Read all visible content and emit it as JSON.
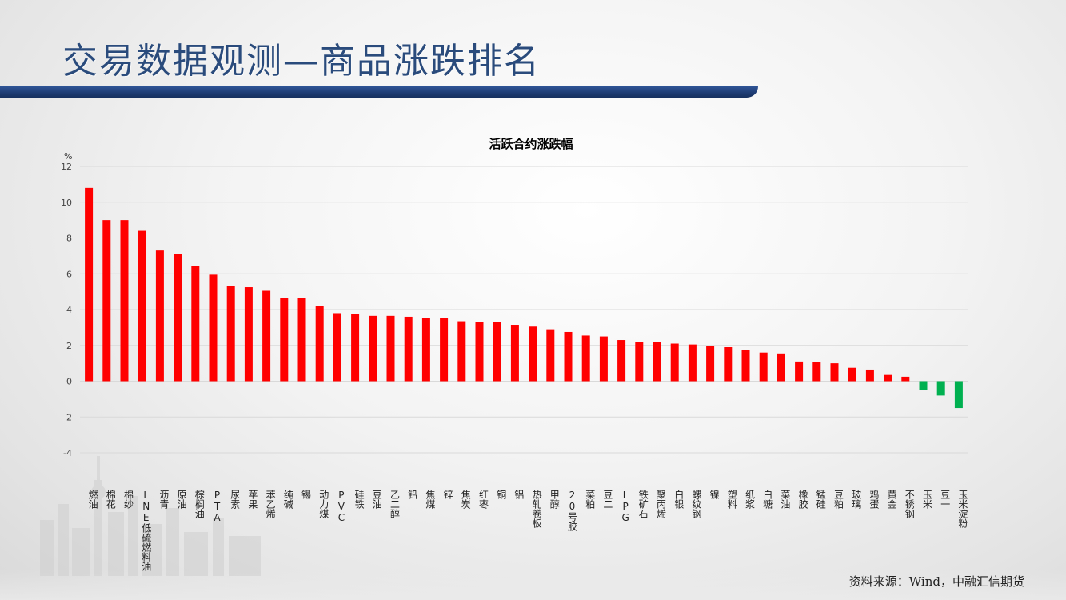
{
  "header": {
    "title": "交易数据观测—商品涨跌排名"
  },
  "source": "资料来源：Wind，中融汇信期货",
  "colors": {
    "title": "#2a4b7c",
    "title_bar": "#1d3b72",
    "positive": "#ff0000",
    "negative": "#00b050",
    "grid": "#d9d9d9"
  },
  "chart_data": {
    "type": "bar",
    "title": "活跃合约涨跌幅",
    "ylabel": "%",
    "ylim": [
      -4,
      12
    ],
    "yticks": [
      -4,
      -2,
      0,
      2,
      4,
      6,
      8,
      10,
      12
    ],
    "grid": true,
    "categories": [
      "燃油",
      "棉花",
      "棉纱",
      "LNE低硫燃料油",
      "沥青",
      "原油",
      "棕榈油",
      "PTA",
      "尿素",
      "苹果",
      "苯乙烯",
      "纯碱",
      "锡",
      "动力煤",
      "PVC",
      "硅铁",
      "豆油",
      "乙二醇",
      "铅",
      "焦煤",
      "锌",
      "焦炭",
      "红枣",
      "铜",
      "铝",
      "热轧卷板",
      "甲醇",
      "20号胶",
      "菜粕",
      "豆二",
      "LPG",
      "铁矿石",
      "聚丙烯",
      "白银",
      "螺纹钢",
      "镍",
      "塑料",
      "纸浆",
      "白糖",
      "菜油",
      "橡胶",
      "锰硅",
      "豆粕",
      "玻璃",
      "鸡蛋",
      "黄金",
      "不锈钢",
      "玉米",
      "豆一",
      "玉米淀粉"
    ],
    "values": [
      10.8,
      9.0,
      9.0,
      8.4,
      7.3,
      7.1,
      6.45,
      5.95,
      5.3,
      5.25,
      5.05,
      4.65,
      4.65,
      4.2,
      3.8,
      3.75,
      3.65,
      3.65,
      3.6,
      3.55,
      3.55,
      3.35,
      3.3,
      3.3,
      3.15,
      3.05,
      2.9,
      2.75,
      2.55,
      2.5,
      2.3,
      2.2,
      2.2,
      2.1,
      2.05,
      1.95,
      1.9,
      1.75,
      1.6,
      1.55,
      1.1,
      1.05,
      1.0,
      0.75,
      0.65,
      0.35,
      0.25,
      -0.5,
      -0.8,
      -1.5
    ]
  }
}
